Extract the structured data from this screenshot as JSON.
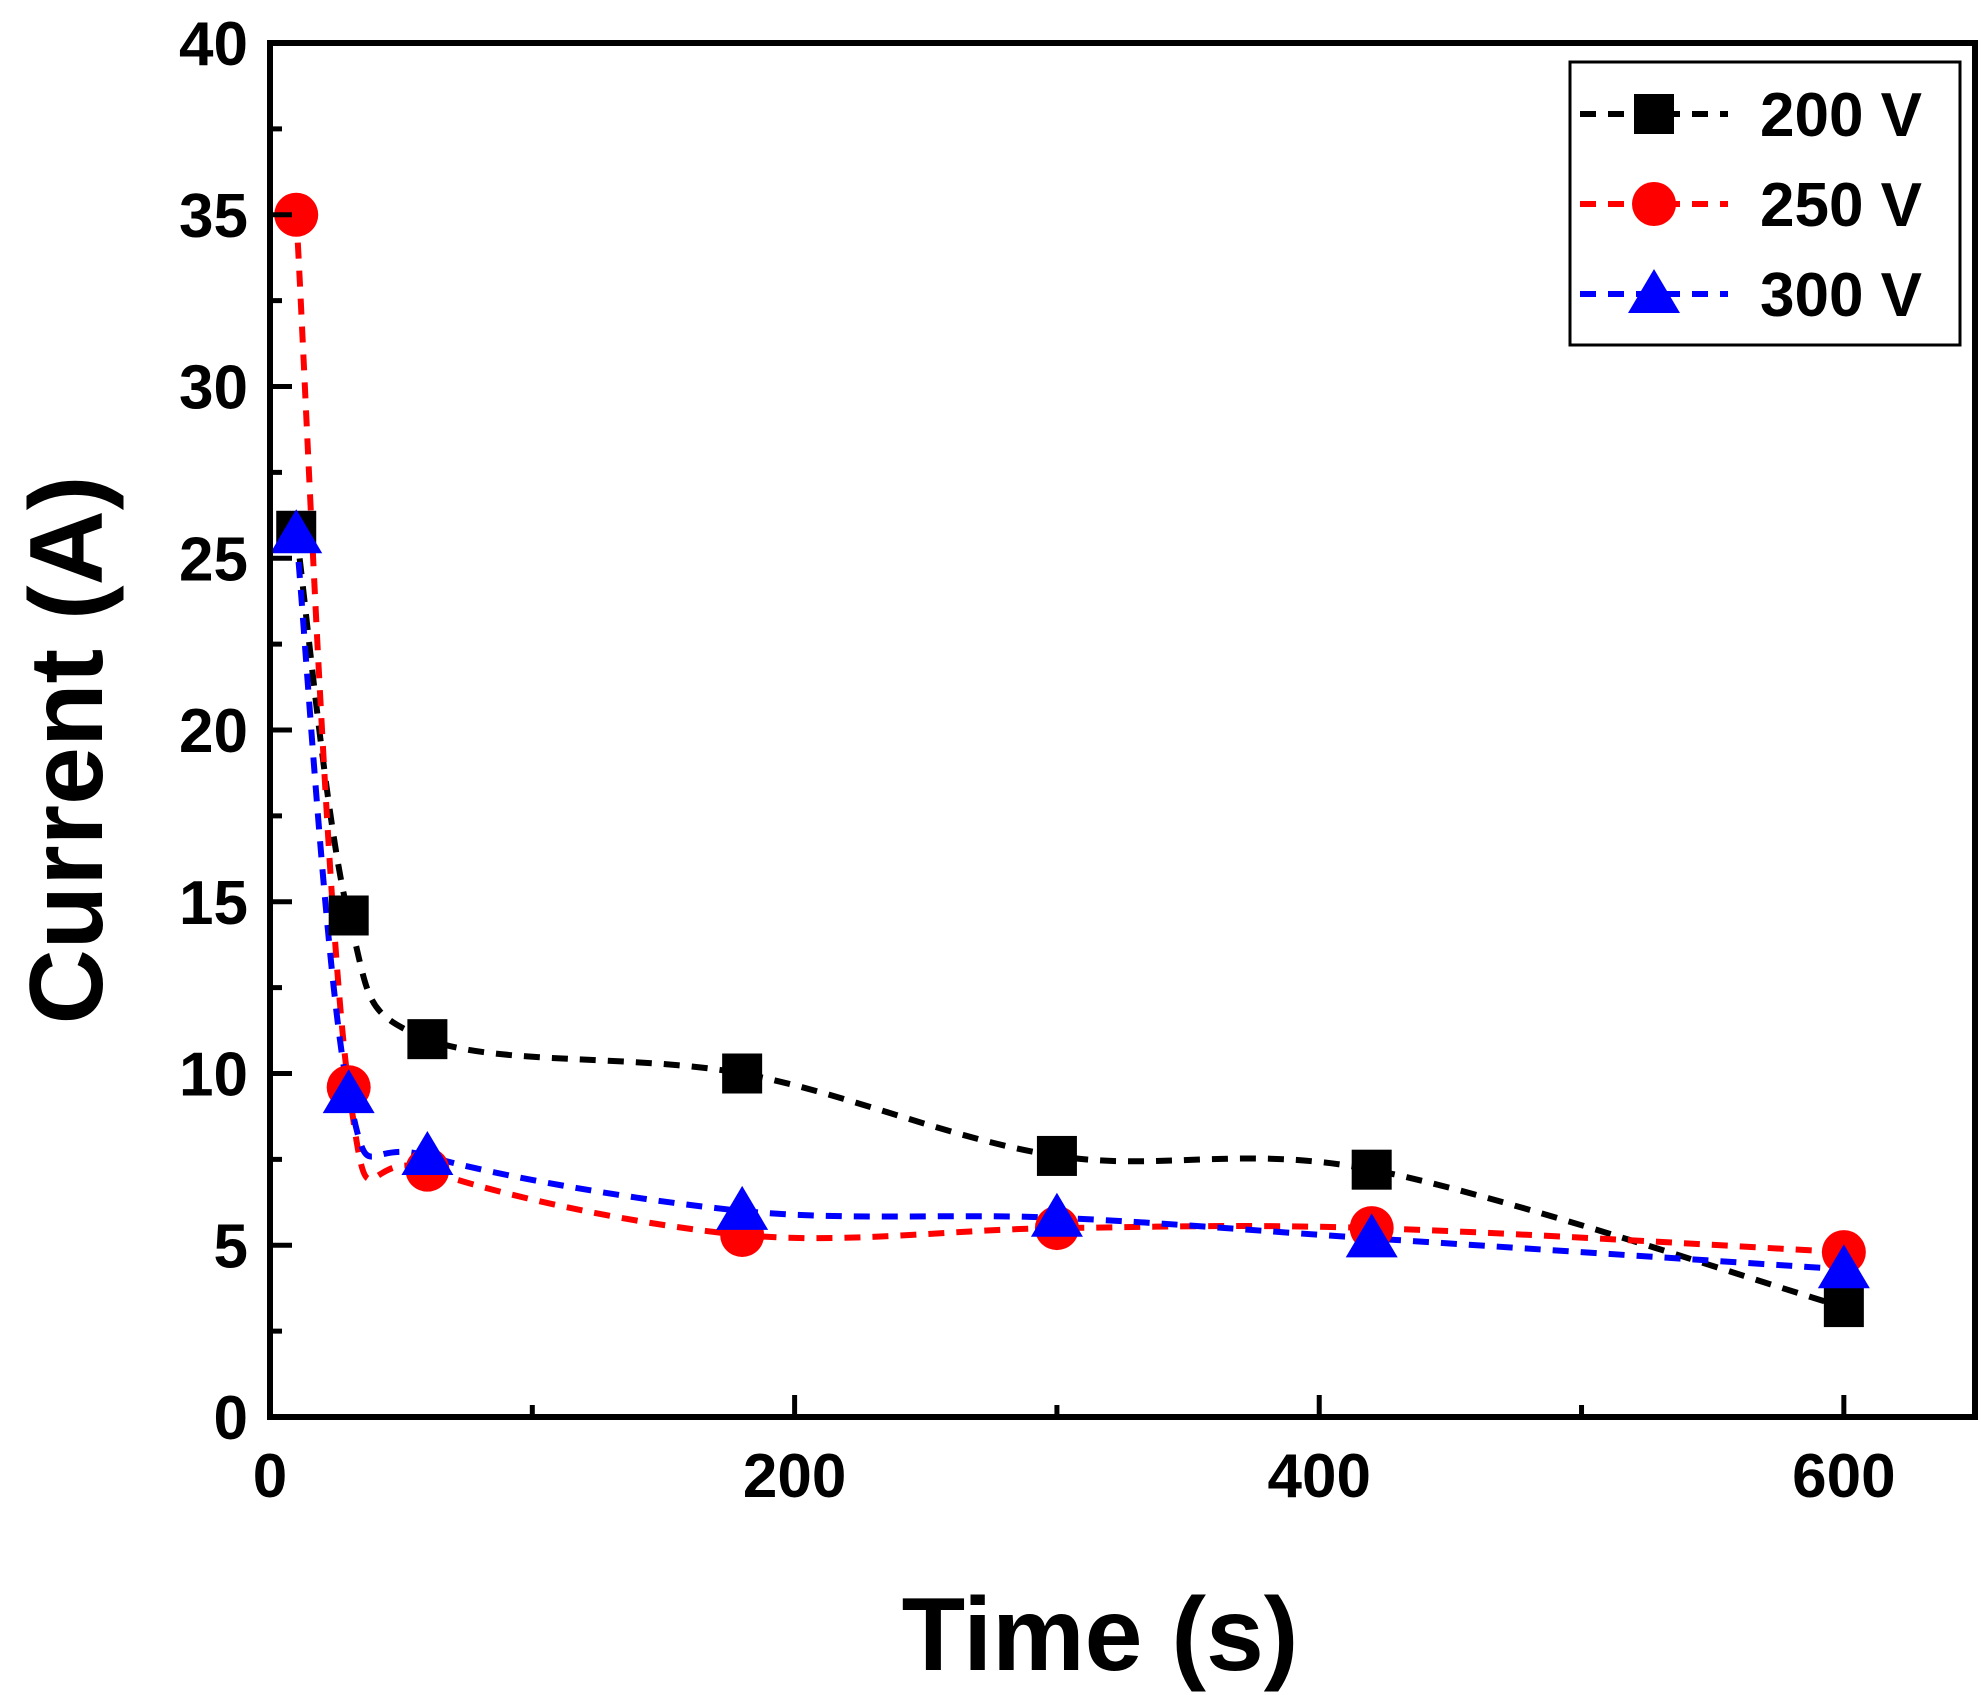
{
  "chart_data": {
    "type": "line",
    "title": "",
    "xlabel": "Time (s)",
    "ylabel": "Current (A)",
    "xlim": [
      0,
      650
    ],
    "ylim": [
      0,
      40
    ],
    "xticks": [
      0,
      200,
      400,
      600
    ],
    "xtick_labels": [
      "0",
      "200",
      "400",
      "600"
    ],
    "yticks": [
      0,
      5,
      10,
      15,
      20,
      25,
      30,
      35,
      40
    ],
    "ytick_labels": [
      "0",
      "5",
      "10",
      "15",
      "20",
      "25",
      "30",
      "35",
      "40"
    ],
    "grid": false,
    "legend_position": "top-right",
    "x": [
      10,
      30,
      60,
      180,
      300,
      420,
      600
    ],
    "series": [
      {
        "name": "200 V",
        "color": "#000000",
        "marker": "square",
        "line_style": "dashed",
        "values": [
          25.8,
          14.6,
          11.0,
          10.0,
          7.6,
          7.2,
          3.2
        ]
      },
      {
        "name": "250 V",
        "color": "#ff0000",
        "marker": "circle",
        "line_style": "dashed",
        "values": [
          35.0,
          9.6,
          7.2,
          5.3,
          5.5,
          5.5,
          4.8
        ]
      },
      {
        "name": "300 V",
        "color": "#0000ff",
        "marker": "triangle",
        "line_style": "dashed",
        "values": [
          25.7,
          9.4,
          7.6,
          6.0,
          5.8,
          5.2,
          4.3
        ]
      }
    ]
  }
}
